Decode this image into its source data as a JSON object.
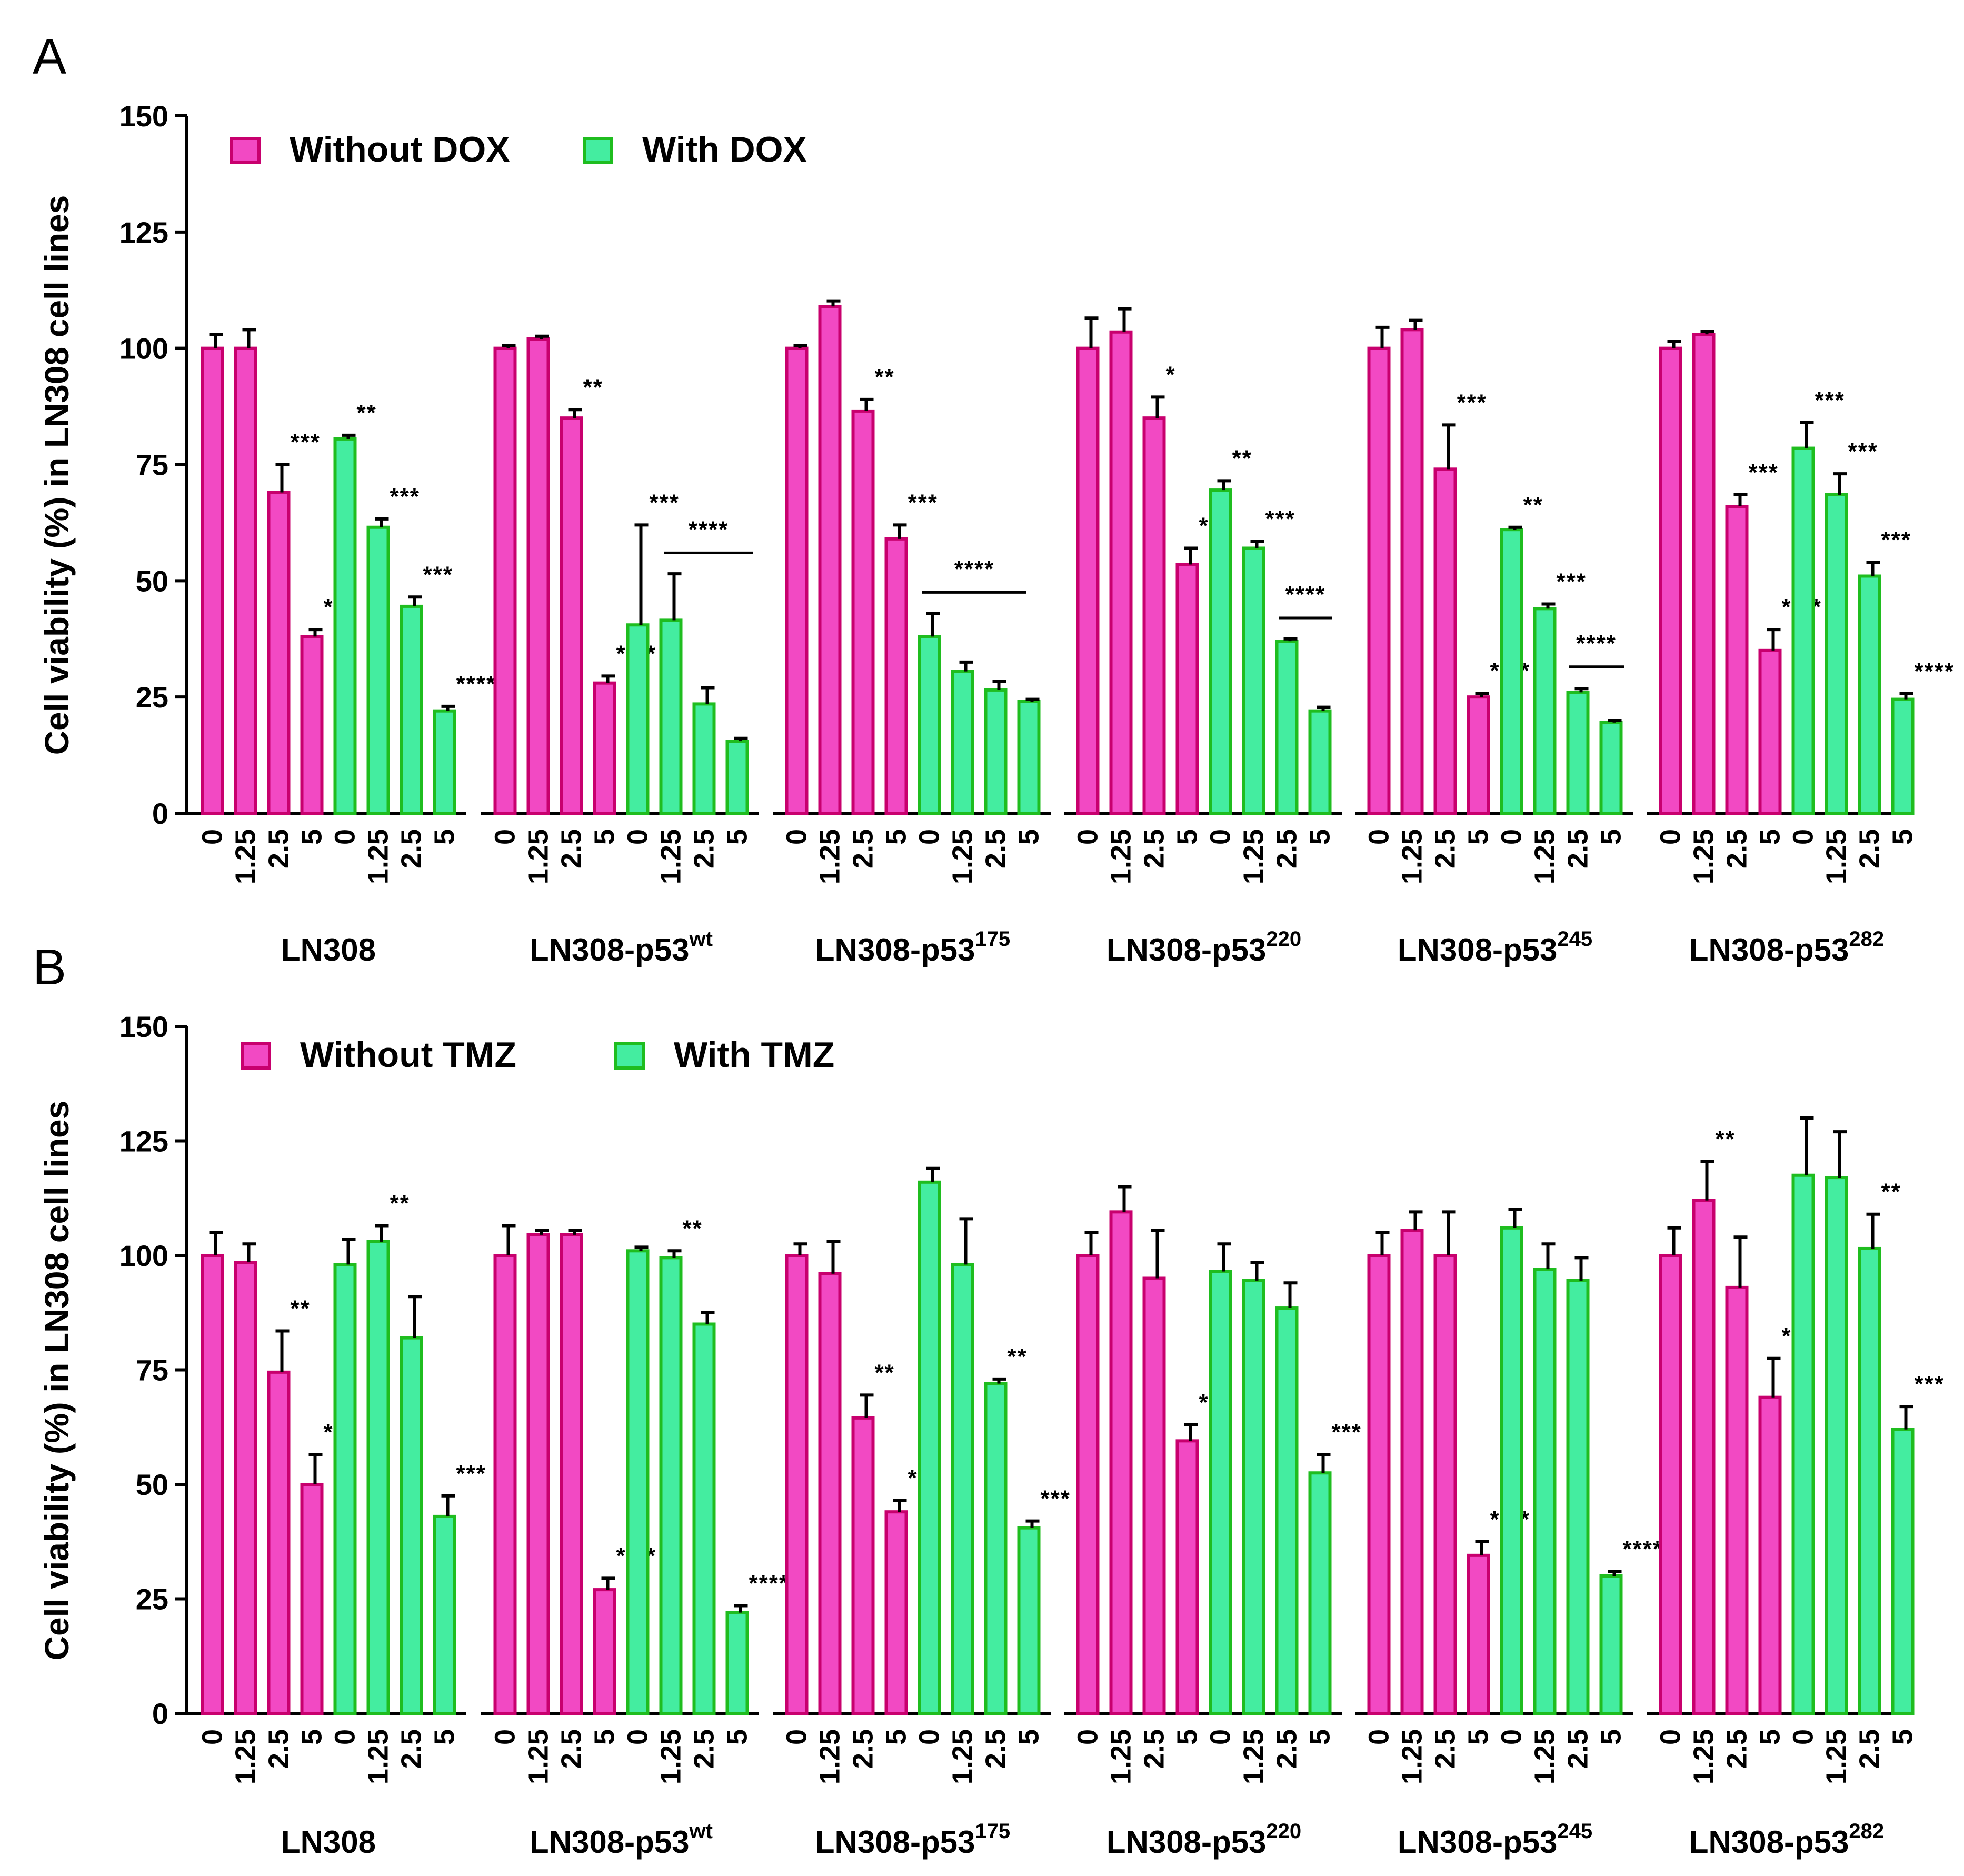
{
  "colors": {
    "without_fill": "#f249c3",
    "without_stroke": "#c8006e",
    "with_fill": "#44eda0",
    "with_stroke": "#1fbd1f",
    "axis": "#000000"
  },
  "chart_data": [
    {
      "panel": "A",
      "type": "bar",
      "ylabel": "Cell viability (%) in LN308 cell lines",
      "ylim": [
        0,
        150
      ],
      "yticks": [
        "0",
        "25",
        "50",
        "75",
        "100",
        "125",
        "150"
      ],
      "legend": [
        "Without DOX",
        "With DOX"
      ],
      "groups": [
        {
          "name": "LN308",
          "sup": "",
          "without": {
            "labels": [
              "0",
              "1.25",
              "2.5",
              "5"
            ],
            "values": [
              100,
              100,
              69,
              38
            ],
            "errors": [
              3,
              4,
              6,
              1.5
            ],
            "sig": [
              "",
              "",
              "***",
              "***"
            ]
          },
          "with": {
            "labels": [
              "0",
              "1.25",
              "2.5",
              "5"
            ],
            "values": [
              80.5,
              61.5,
              44.5,
              22
            ],
            "errors": [
              0.8,
              1.8,
              2,
              1
            ],
            "sig": [
              "**",
              "***",
              "***",
              "****"
            ]
          },
          "bracket": ""
        },
        {
          "name": "LN308-p53",
          "sup": "wt",
          "without": {
            "labels": [
              "0",
              "1.25",
              "2.5",
              "5"
            ],
            "values": [
              100,
              102,
              85,
              28
            ],
            "errors": [
              0.6,
              0.6,
              1.8,
              1.5
            ],
            "sig": [
              "",
              "",
              "**",
              "****"
            ]
          },
          "with": {
            "labels": [
              "0",
              "1.25",
              "2.5",
              "5"
            ],
            "values": [
              40.5,
              41.5,
              23.5,
              15.5
            ],
            "errors": [
              21.5,
              10,
              3.5,
              0.6
            ],
            "sig": [
              "***",
              "",
              "",
              ""
            ]
          },
          "bracket": "****"
        },
        {
          "name": "LN308-p53",
          "sup": "175",
          "without": {
            "labels": [
              "0",
              "1.25",
              "2.5",
              "5"
            ],
            "values": [
              100,
              109,
              86.5,
              59
            ],
            "errors": [
              0.6,
              1.2,
              2.5,
              3
            ],
            "sig": [
              "",
              "",
              "**",
              "***"
            ]
          },
          "with": {
            "labels": [
              "0",
              "1.25",
              "2.5",
              "5"
            ],
            "values": [
              38,
              30.5,
              26.5,
              24
            ],
            "errors": [
              5,
              2,
              1.8,
              0.5
            ],
            "sig": [
              "",
              "",
              "",
              ""
            ]
          },
          "bracket": "****"
        },
        {
          "name": "LN308-p53",
          "sup": "220",
          "without": {
            "labels": [
              "0",
              "1.25",
              "2.5",
              "5"
            ],
            "values": [
              100,
              103.5,
              85,
              53.5
            ],
            "errors": [
              6.5,
              5,
              4.5,
              3.5
            ],
            "sig": [
              "",
              "",
              "*",
              "***"
            ]
          },
          "with": {
            "labels": [
              "0",
              "1.25",
              "2.5",
              "5"
            ],
            "values": [
              69.5,
              57,
              37,
              22
            ],
            "errors": [
              2,
              1.5,
              0.5,
              0.8
            ],
            "sig": [
              "**",
              "***",
              "",
              ""
            ]
          },
          "bracket": "****"
        },
        {
          "name": "LN308-p53",
          "sup": "245",
          "without": {
            "labels": [
              "0",
              "1.25",
              "2.5",
              "5"
            ],
            "values": [
              100,
              104,
              74,
              25
            ],
            "errors": [
              4.5,
              2,
              9.5,
              0.8
            ],
            "sig": [
              "",
              "",
              "***",
              "****"
            ]
          },
          "with": {
            "labels": [
              "0",
              "1.25",
              "2.5",
              "5"
            ],
            "values": [
              61,
              44,
              26,
              19.5
            ],
            "errors": [
              0.5,
              1,
              0.8,
              0.5
            ],
            "sig": [
              "**",
              "***",
              "",
              ""
            ]
          },
          "bracket": "****"
        },
        {
          "name": "LN308-p53",
          "sup": "282",
          "without": {
            "labels": [
              "0",
              "1.25",
              "2.5",
              "5"
            ],
            "values": [
              100,
              103,
              66,
              35
            ],
            "errors": [
              1.5,
              0.6,
              2.5,
              4.5
            ],
            "sig": [
              "",
              "",
              "***",
              "****"
            ]
          },
          "with": {
            "labels": [
              "0",
              "1.25",
              "2.5",
              "5"
            ],
            "values": [
              78.5,
              68.5,
              51,
              24.5
            ],
            "errors": [
              5.5,
              4.5,
              3,
              1.2
            ],
            "sig": [
              "***",
              "***",
              "***",
              "****"
            ]
          },
          "bracket": ""
        }
      ]
    },
    {
      "panel": "B",
      "type": "bar",
      "ylabel": "Cell viability (%) in LN308 cell lines",
      "ylim": [
        0,
        150
      ],
      "yticks": [
        "0",
        "25",
        "50",
        "75",
        "100",
        "125",
        "150"
      ],
      "legend": [
        "Without TMZ",
        "With TMZ"
      ],
      "groups": [
        {
          "name": "LN308",
          "sup": "",
          "without": {
            "labels": [
              "0",
              "1.25",
              "2.5",
              "5"
            ],
            "values": [
              100,
              98.5,
              74.5,
              50
            ],
            "errors": [
              5,
              4,
              9,
              6.5
            ],
            "sig": [
              "",
              "",
              "**",
              "***"
            ]
          },
          "with": {
            "labels": [
              "0",
              "1.25",
              "2.5",
              "5"
            ],
            "values": [
              98,
              103,
              82,
              43
            ],
            "errors": [
              5.5,
              3.5,
              9,
              4.5
            ],
            "sig": [
              "",
              "**",
              "",
              "***"
            ]
          },
          "bracket": ""
        },
        {
          "name": "LN308-p53",
          "sup": "wt",
          "without": {
            "labels": [
              "0",
              "1.25",
              "2.5",
              "5"
            ],
            "values": [
              100,
              104.5,
              104.5,
              27
            ],
            "errors": [
              6.5,
              1,
              1,
              2.5
            ],
            "sig": [
              "",
              "",
              "",
              "****"
            ]
          },
          "with": {
            "labels": [
              "0",
              "1.25",
              "2.5",
              "5"
            ],
            "values": [
              101,
              99.5,
              85,
              22
            ],
            "errors": [
              0.8,
              1.5,
              2.5,
              1.5
            ],
            "sig": [
              "",
              "**",
              "",
              "****"
            ]
          },
          "bracket": ""
        },
        {
          "name": "LN308-p53",
          "sup": "175",
          "without": {
            "labels": [
              "0",
              "1.25",
              "2.5",
              "5"
            ],
            "values": [
              100,
              96,
              64.5,
              44
            ],
            "errors": [
              2.5,
              7,
              5,
              2.5
            ],
            "sig": [
              "",
              "",
              "**",
              "***"
            ]
          },
          "with": {
            "labels": [
              "0",
              "1.25",
              "2.5",
              "5"
            ],
            "values": [
              116,
              98,
              72,
              40.5
            ],
            "errors": [
              3,
              10,
              1,
              1.5
            ],
            "sig": [
              "",
              "",
              "**",
              "***"
            ]
          },
          "bracket": ""
        },
        {
          "name": "LN308-p53",
          "sup": "220",
          "without": {
            "labels": [
              "0",
              "1.25",
              "2.5",
              "5"
            ],
            "values": [
              100,
              109.5,
              95,
              59.5
            ],
            "errors": [
              5,
              5.5,
              10.5,
              3.5
            ],
            "sig": [
              "",
              "",
              "",
              "***"
            ]
          },
          "with": {
            "labels": [
              "0",
              "1.25",
              "2.5",
              "5"
            ],
            "values": [
              96.5,
              94.5,
              88.5,
              52.5
            ],
            "errors": [
              6,
              4,
              5.5,
              4
            ],
            "sig": [
              "",
              "",
              "",
              "***"
            ]
          },
          "bracket": ""
        },
        {
          "name": "LN308-p53",
          "sup": "245",
          "without": {
            "labels": [
              "0",
              "1.25",
              "2.5",
              "5"
            ],
            "values": [
              100,
              105.5,
              100,
              34.5
            ],
            "errors": [
              5,
              4,
              9.5,
              3
            ],
            "sig": [
              "",
              "",
              "",
              "****"
            ]
          },
          "with": {
            "labels": [
              "0",
              "1.25",
              "2.5",
              "5"
            ],
            "values": [
              106,
              97,
              94.5,
              30
            ],
            "errors": [
              4,
              5.5,
              5,
              1
            ],
            "sig": [
              "",
              "",
              "",
              "****"
            ]
          },
          "bracket": ""
        },
        {
          "name": "LN308-p53",
          "sup": "282",
          "without": {
            "labels": [
              "0",
              "1.25",
              "2.5",
              "5"
            ],
            "values": [
              100,
              112,
              93,
              69
            ],
            "errors": [
              6,
              8.5,
              11,
              8.5
            ],
            "sig": [
              "",
              "**",
              "",
              "***"
            ]
          },
          "with": {
            "labels": [
              "0",
              "1.25",
              "2.5",
              "5"
            ],
            "values": [
              117.5,
              117,
              101.5,
              62
            ],
            "errors": [
              12.5,
              10,
              7.5,
              5
            ],
            "sig": [
              "",
              "",
              "**",
              "***"
            ]
          },
          "bracket": ""
        }
      ]
    }
  ]
}
